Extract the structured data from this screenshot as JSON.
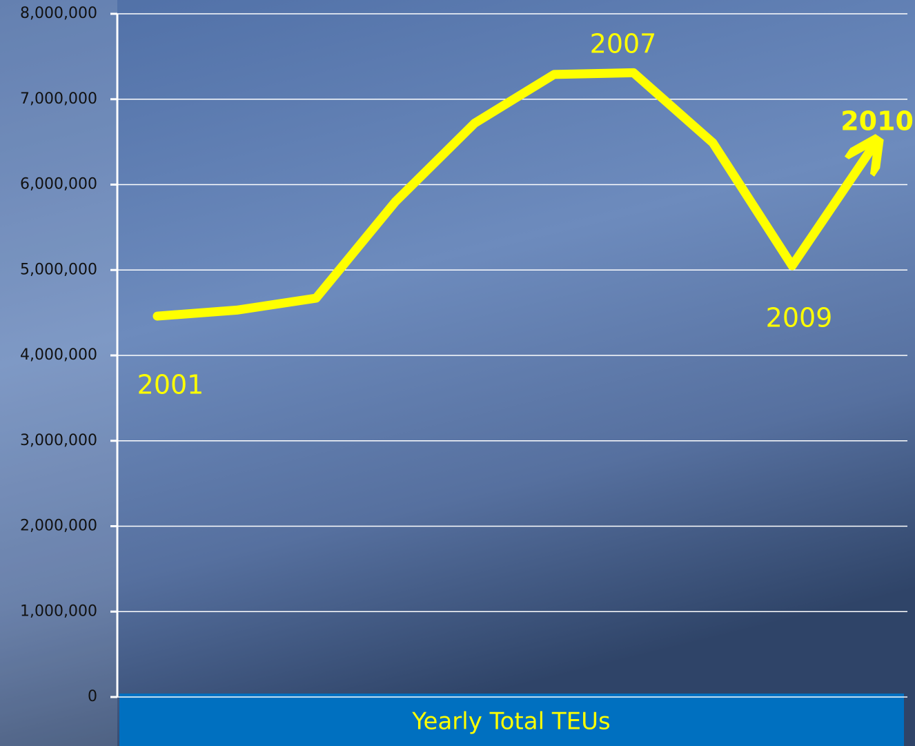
{
  "chart_data": {
    "type": "line",
    "title": "Yearly Total TEUs",
    "categories": [
      "2001",
      null,
      null,
      null,
      null,
      null,
      "2007",
      null,
      "2009",
      "2010"
    ],
    "series": [
      {
        "color": "#ffff00",
        "values": [
          4460000,
          4530000,
          4670000,
          5800000,
          6720000,
          7290000,
          7310000,
          6490000,
          5050000,
          6420000
        ]
      }
    ],
    "ylim": [
      0,
      8000000
    ],
    "yticks": [
      0,
      {
        "value": 1000000,
        "label": "1,000,000"
      },
      {
        "value": 2000000,
        "label": "2,000,000"
      },
      {
        "value": 3000000,
        "label": "3,000,000"
      },
      {
        "value": 4000000,
        "label": "4,000,000"
      },
      {
        "value": 5000000,
        "label": "5,000,000"
      },
      {
        "value": 6000000,
        "label": "6,000,000"
      },
      {
        "value": 7000000,
        "label": "7,000,000"
      },
      {
        "value": 8000000,
        "label": "8,000,000"
      }
    ],
    "grid": true
  }
}
